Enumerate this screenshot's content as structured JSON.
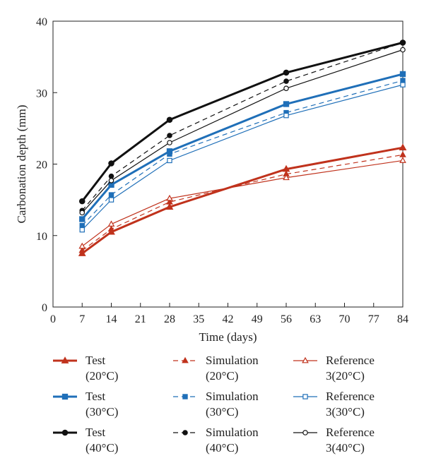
{
  "chart_data": {
    "type": "line",
    "xlabel": "Time (days)",
    "ylabel": "Carbonation depth (mm)",
    "xlim": [
      0,
      84
    ],
    "ylim": [
      0,
      40
    ],
    "x_ticks": [
      0,
      7,
      14,
      21,
      28,
      35,
      42,
      49,
      56,
      63,
      70,
      77,
      84
    ],
    "y_ticks": [
      0,
      10,
      20,
      30,
      40
    ],
    "grid": false,
    "legend_position": "bottom",
    "x": [
      7,
      14,
      28,
      56,
      84
    ],
    "series": [
      {
        "legend_label": [
          "Test",
          "(20°C)"
        ],
        "color": "#c0321c",
        "style": "solid",
        "marker": "filled-triangle",
        "width": 3,
        "values": [
          7.5,
          10.5,
          14.0,
          19.3,
          22.3
        ]
      },
      {
        "legend_label": [
          "Simulation",
          "(20°C)"
        ],
        "color": "#c0321c",
        "style": "dashed",
        "marker": "filled-triangle",
        "width": 1.2,
        "values": [
          7.9,
          10.9,
          14.7,
          18.6,
          21.3
        ]
      },
      {
        "legend_label": [
          "Reference",
          "3(20°C)"
        ],
        "color": "#c0321c",
        "style": "solid",
        "marker": "open-triangle",
        "width": 1.2,
        "values": [
          8.5,
          11.6,
          15.2,
          18.1,
          20.5
        ]
      },
      {
        "legend_label": [
          "Test",
          "(30°C)"
        ],
        "color": "#1f6fb8",
        "style": "solid",
        "marker": "filled-square",
        "width": 3,
        "values": [
          12.3,
          17.1,
          21.8,
          28.4,
          32.6
        ]
      },
      {
        "legend_label": [
          "Simulation",
          "(30°C)"
        ],
        "color": "#1f6fb8",
        "style": "dashed",
        "marker": "filled-square",
        "width": 1.2,
        "values": [
          11.4,
          15.7,
          21.4,
          27.2,
          31.7
        ]
      },
      {
        "legend_label": [
          "Reference",
          "3(30°C)"
        ],
        "color": "#1f6fb8",
        "style": "solid",
        "marker": "open-square",
        "width": 1.2,
        "values": [
          10.8,
          15.0,
          20.5,
          26.8,
          31.1
        ]
      },
      {
        "legend_label": [
          "Test",
          "(40°C)"
        ],
        "color": "#111111",
        "style": "solid",
        "marker": "filled-circle",
        "width": 3,
        "values": [
          14.8,
          20.1,
          26.2,
          32.8,
          37.0
        ]
      },
      {
        "legend_label": [
          "Simulation",
          "(40°C)"
        ],
        "color": "#111111",
        "style": "dashed",
        "marker": "filled-circle",
        "width": 1.2,
        "values": [
          13.5,
          18.3,
          24.0,
          31.6,
          37.0
        ]
      },
      {
        "legend_label": [
          "Reference",
          "3(40°C)"
        ],
        "color": "#111111",
        "style": "solid",
        "marker": "open-circle",
        "width": 1.2,
        "values": [
          13.2,
          17.7,
          23.0,
          30.6,
          36.0
        ]
      }
    ]
  }
}
